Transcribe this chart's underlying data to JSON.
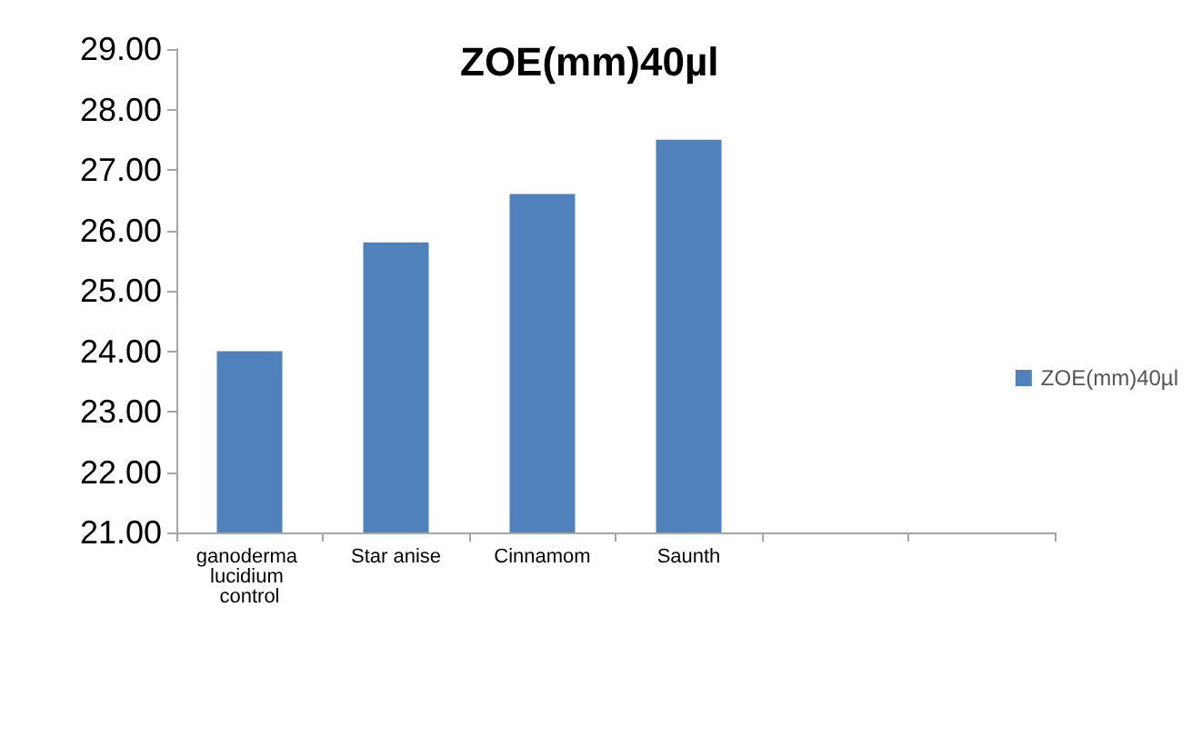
{
  "chart_data": {
    "type": "bar",
    "title": "ZOE(mm)40µl",
    "categories": [
      "ganoderma lucidium control",
      "Star anise",
      "Cinnamom",
      "Saunth",
      null,
      null
    ],
    "series": [
      {
        "name": "ZOE(mm)40µl",
        "color": "#4f81bd",
        "values": [
          24.0,
          25.8,
          26.6,
          27.5,
          null,
          null
        ]
      }
    ],
    "ylim": [
      21,
      29
    ],
    "yticks": [
      {
        "value": 21,
        "label": "21.00"
      },
      {
        "value": 22,
        "label": "22.00"
      },
      {
        "value": 23,
        "label": "23.00"
      },
      {
        "value": 24,
        "label": "24.00"
      },
      {
        "value": 25,
        "label": "25.00"
      },
      {
        "value": 26,
        "label": "26.00"
      },
      {
        "value": 27,
        "label": "27.00"
      },
      {
        "value": 28,
        "label": "28.00"
      },
      {
        "value": 29,
        "label": "29.00"
      }
    ],
    "grid": false,
    "legend": "right"
  }
}
